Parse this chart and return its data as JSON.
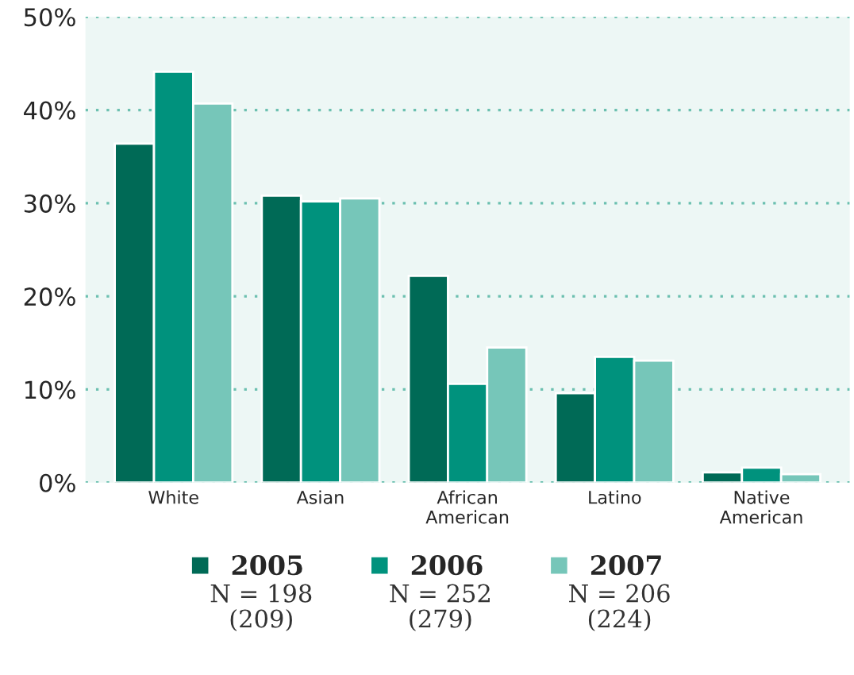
{
  "chart_data": {
    "type": "bar",
    "categories": [
      "White",
      "Asian",
      "African\nAmerican",
      "Latino",
      "Native\nAmerican"
    ],
    "series": [
      {
        "name": "2005",
        "color": "#006a56",
        "values": [
          36.4,
          30.8,
          22.2,
          9.6,
          1.1
        ]
      },
      {
        "name": "2006",
        "color": "#00927d",
        "values": [
          44.1,
          30.2,
          10.6,
          13.5,
          1.6
        ]
      },
      {
        "name": "2007",
        "color": "#76c6b9",
        "values": [
          40.7,
          30.5,
          14.5,
          13.1,
          0.9
        ]
      }
    ],
    "ylim": [
      0,
      50
    ],
    "yticks": [
      {
        "value": 0,
        "label": "0%"
      },
      {
        "value": 10,
        "label": "10%"
      },
      {
        "value": 20,
        "label": "20%"
      },
      {
        "value": 30,
        "label": "30%"
      },
      {
        "value": 40,
        "label": "40%"
      },
      {
        "value": 50,
        "label": "50%"
      }
    ],
    "grid": "y",
    "legend": "bottom",
    "annotations": [
      "N = 198\n(209)",
      "N = 252\n(279)",
      "N = 206\n(224)"
    ]
  }
}
